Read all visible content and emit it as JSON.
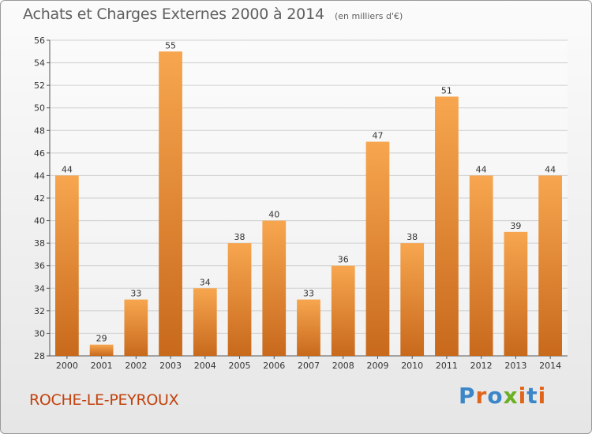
{
  "header": {
    "title": "Achats et Charges Externes 2000 à 2014",
    "unit": "(en milliers d'€)"
  },
  "footer": {
    "commune": "ROCHE-LE-PEYROUX",
    "brand": "Proxiti",
    "brand_colors": [
      "#3a86c8",
      "#e0651a",
      "#3a86c8",
      "#6ab023",
      "#e0651a",
      "#3a86c8",
      "#e0651a"
    ]
  },
  "colors": {
    "bar_light": "#f7a64f",
    "bar_dark": "#c8691c",
    "grid": "#cfcfcf",
    "axis_text": "#333333",
    "commune": "#c2410c"
  },
  "chart_data": {
    "type": "bar",
    "categories": [
      "2000",
      "2001",
      "2002",
      "2003",
      "2004",
      "2005",
      "2006",
      "2007",
      "2008",
      "2009",
      "2010",
      "2011",
      "2012",
      "2013",
      "2014"
    ],
    "values": [
      44,
      29,
      33,
      55,
      34,
      38,
      40,
      33,
      36,
      47,
      38,
      51,
      44,
      39,
      44
    ],
    "ylim": [
      28,
      56
    ],
    "yticks": [
      28,
      30,
      32,
      34,
      36,
      38,
      40,
      42,
      44,
      46,
      48,
      50,
      52,
      54,
      56
    ],
    "grid": true,
    "data_labels": true
  }
}
